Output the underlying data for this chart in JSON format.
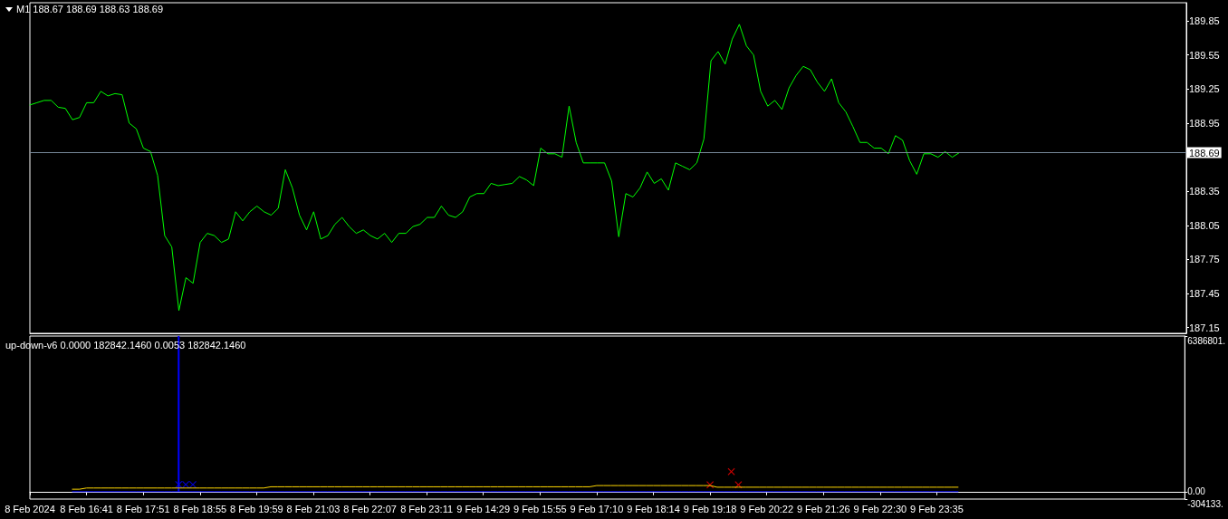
{
  "chart_data": [
    {
      "type": "line",
      "title": "M1 188.67 188.69 188.63 188.69",
      "categories": [
        null,
        null,
        null,
        null,
        null,
        null,
        null,
        null,
        null,
        null,
        null,
        null,
        null,
        null,
        null,
        null,
        null,
        null,
        null,
        null,
        null,
        null,
        null,
        null,
        null,
        null,
        null,
        null,
        null,
        null,
        null,
        null,
        null,
        null,
        null,
        null,
        null,
        null,
        null,
        null,
        null,
        null,
        null,
        null,
        null,
        null,
        null,
        null,
        null,
        null,
        null,
        null,
        null,
        null,
        null,
        null,
        null,
        null,
        null,
        null,
        null,
        null,
        null,
        null,
        null,
        null,
        null,
        null,
        null,
        null,
        null,
        null,
        null,
        null,
        null,
        null,
        null,
        null,
        null,
        null,
        null,
        null,
        null,
        null,
        null,
        null,
        null,
        null,
        null,
        null,
        null,
        null,
        null,
        null,
        null,
        null,
        null,
        null,
        null,
        null,
        null,
        null,
        null,
        null,
        null,
        null,
        null,
        null,
        null,
        null,
        null,
        null,
        null,
        null,
        null,
        null,
        null,
        null,
        null,
        null,
        null,
        null,
        null,
        null,
        null,
        null,
        null,
        null,
        null,
        null,
        null,
        null,
        null,
        null,
        null,
        null,
        null,
        null,
        null,
        null,
        null,
        null,
        null,
        null,
        null,
        null,
        null,
        null,
        null,
        null,
        null,
        null,
        null,
        null,
        null,
        null,
        null,
        null,
        null,
        null,
        null,
        null,
        null,
        null
      ],
      "series": [
        {
          "color": "#00ff00",
          "values": [
            189.11,
            189.13,
            189.15,
            189.15,
            189.09,
            189.08,
            188.98,
            189.0,
            189.13,
            189.13,
            189.23,
            189.19,
            189.21,
            189.2,
            188.95,
            188.9,
            188.73,
            188.7,
            188.49,
            187.96,
            187.86,
            187.3,
            187.59,
            187.54,
            187.9,
            187.98,
            187.96,
            187.9,
            187.93,
            188.17,
            188.09,
            188.17,
            188.22,
            188.17,
            188.14,
            188.2,
            188.54,
            188.38,
            188.14,
            188.01,
            188.17,
            187.93,
            187.96,
            188.06,
            188.12,
            188.04,
            187.98,
            188.01,
            187.96,
            187.93,
            187.98,
            187.9,
            187.98,
            187.98,
            188.04,
            188.06,
            188.12,
            188.12,
            188.22,
            188.14,
            188.12,
            188.17,
            188.3,
            188.33,
            188.33,
            188.42,
            188.4,
            188.41,
            188.42,
            188.48,
            188.45,
            188.4,
            188.73,
            188.68,
            188.68,
            188.65,
            189.1,
            188.78,
            188.6,
            188.6,
            188.6,
            188.6,
            188.44,
            187.95,
            188.33,
            188.3,
            188.38,
            188.52,
            188.42,
            188.46,
            188.36,
            188.6,
            188.57,
            188.54,
            188.6,
            188.81,
            189.5,
            189.58,
            189.47,
            189.69,
            189.82,
            189.63,
            189.55,
            189.23,
            189.1,
            189.15,
            189.07,
            189.26,
            189.37,
            189.45,
            189.42,
            189.31,
            189.23,
            189.34,
            189.13,
            189.05,
            188.92,
            188.78,
            188.78,
            188.73,
            188.73,
            188.68,
            188.84,
            188.8,
            188.62,
            188.5,
            188.68,
            188.68,
            188.65,
            188.7,
            188.65,
            188.69,
            null,
            null,
            null,
            null,
            null,
            null,
            null,
            null,
            null,
            null,
            null,
            null,
            null,
            null,
            null,
            null,
            null,
            null,
            null,
            null,
            null,
            null,
            null,
            null,
            null,
            null,
            null,
            null,
            null,
            null,
            null,
            null
          ]
        }
      ],
      "ylim": [
        187.1,
        190.01
      ],
      "yticks": [
        187.15,
        187.45,
        187.75,
        188.05,
        188.35,
        {
          "value": 188.65,
          "label": null
        },
        188.95,
        189.25,
        189.55,
        189.85
      ],
      "ref_lines": [
        {
          "axis": "y",
          "value": 188.69,
          "label": "188.69",
          "color": "#778899"
        }
      ],
      "tick_labels": "y"
    },
    {
      "type": "line",
      "title": "up-down-v6 0.0000 182842.1460 0.0053 182842.1460",
      "categories": [
        "8 Feb 2024",
        null,
        null,
        null,
        null,
        null,
        null,
        null,
        "8 Feb 16:41",
        null,
        null,
        null,
        null,
        null,
        null,
        null,
        "8 Feb 17:51",
        null,
        null,
        null,
        null,
        null,
        null,
        null,
        "8 Feb 18:55",
        null,
        null,
        null,
        null,
        null,
        null,
        null,
        "8 Feb 19:59",
        null,
        null,
        null,
        null,
        null,
        null,
        null,
        "8 Feb 21:03",
        null,
        null,
        null,
        null,
        null,
        null,
        null,
        "8 Feb 22:07",
        null,
        null,
        null,
        null,
        null,
        null,
        null,
        "8 Feb 23:11",
        null,
        null,
        null,
        null,
        null,
        null,
        null,
        "9 Feb 14:29",
        null,
        null,
        null,
        null,
        null,
        null,
        null,
        "9 Feb 15:55",
        null,
        null,
        null,
        null,
        null,
        null,
        null,
        "9 Feb 17:10",
        null,
        null,
        null,
        null,
        null,
        null,
        null,
        "9 Feb 18:14",
        null,
        null,
        null,
        null,
        null,
        null,
        null,
        "9 Feb 19:18",
        null,
        null,
        null,
        null,
        null,
        null,
        null,
        "9 Feb 20:22",
        null,
        null,
        null,
        null,
        null,
        null,
        null,
        "9 Feb 21:26",
        null,
        null,
        null,
        null,
        null,
        null,
        null,
        "9 Feb 22:30",
        null,
        null,
        null,
        null,
        null,
        null,
        null,
        "9 Feb 23:35",
        null,
        null,
        null,
        null,
        null,
        null,
        null,
        null,
        null,
        null,
        null,
        null,
        null,
        null,
        null,
        null,
        null,
        null,
        null,
        null,
        null,
        null,
        null,
        null,
        null,
        null,
        null,
        null,
        null,
        null,
        null,
        null,
        null,
        null,
        null
      ],
      "series": [
        {
          "color": "#0000ff",
          "values": [
            null,
            null,
            null,
            null,
            null,
            null,
            0,
            0,
            0,
            0,
            0,
            0,
            0,
            0,
            0,
            0,
            0,
            0,
            0,
            0,
            0,
            0,
            0,
            0,
            0,
            0,
            0,
            0,
            0,
            0,
            0,
            0,
            0,
            0,
            0,
            0,
            0,
            0,
            0,
            0,
            0,
            0,
            0,
            0,
            0,
            0,
            0,
            0,
            0,
            0,
            0,
            0,
            0,
            0,
            0,
            0,
            0,
            0,
            0,
            0,
            0,
            0,
            0,
            0,
            0,
            0,
            0,
            0,
            0,
            0,
            0,
            0,
            0,
            0,
            0,
            0,
            0,
            0,
            0,
            0,
            0,
            0,
            0,
            0,
            0,
            0,
            0,
            0,
            0,
            0,
            0,
            0,
            0,
            0,
            0,
            0,
            0,
            0,
            0,
            0,
            0,
            0,
            0,
            0,
            0,
            0,
            0,
            0,
            0,
            0,
            0,
            0,
            0,
            0,
            0,
            0,
            0,
            0,
            0,
            0,
            0,
            0,
            0,
            0,
            0,
            0,
            0,
            0,
            0,
            0,
            0,
            0,
            null,
            null,
            null,
            null,
            null,
            null,
            null,
            null,
            null,
            null,
            null,
            null,
            null,
            null,
            null,
            null,
            null,
            null,
            null,
            null,
            null,
            null,
            null,
            null,
            null,
            null,
            null,
            null,
            null,
            null,
            null,
            null
          ]
        },
        {
          "color": "#ffd700",
          "values": [
            null,
            null,
            null,
            null,
            null,
            null,
            100000,
            100000,
            150000,
            150000,
            150000,
            150000,
            150000,
            150000,
            150000,
            150000,
            150000,
            150000,
            150000,
            150000,
            150000,
            150000,
            150000,
            150000,
            150000,
            150000,
            150000,
            150000,
            150000,
            150000,
            150000,
            150000,
            150000,
            150000,
            200000,
            200000,
            200000,
            200000,
            200000,
            200000,
            200000,
            200000,
            200000,
            200000,
            200000,
            200000,
            200000,
            200000,
            200000,
            200000,
            200000,
            200000,
            200000,
            200000,
            200000,
            200000,
            200000,
            200000,
            200000,
            200000,
            200000,
            200000,
            200000,
            200000,
            200000,
            200000,
            200000,
            200000,
            200000,
            200000,
            200000,
            200000,
            200000,
            200000,
            200000,
            200000,
            200000,
            200000,
            200000,
            200000,
            250000,
            250000,
            250000,
            250000,
            250000,
            250000,
            250000,
            250000,
            250000,
            250000,
            250000,
            250000,
            250000,
            250000,
            250000,
            250000,
            250000,
            182842.146,
            182842.146,
            182842.146,
            182842.146,
            182842.146,
            182842.146,
            182842.146,
            182842.146,
            182842.146,
            182842.146,
            182842.146,
            182842.146,
            182842.146,
            182842.146,
            182842.146,
            182842.146,
            182842.146,
            182842.146,
            182842.146,
            182842.146,
            182842.146,
            182842.146,
            182842.146,
            182842.146,
            182842.146,
            182842.146,
            182842.146,
            182842.146,
            182842.146,
            182842.146,
            182842.146,
            182842.146,
            182842.146,
            182842.146,
            182842.146,
            null,
            null,
            null,
            null,
            null,
            null,
            null,
            null,
            null,
            null,
            null,
            null,
            null,
            null,
            null,
            null,
            null,
            null,
            null,
            null,
            null,
            null,
            null,
            null,
            null,
            null,
            null,
            null,
            null,
            null,
            null,
            null
          ]
        },
        {
          "type": "bar",
          "color": "#0000ff",
          "values": [
            null,
            null,
            null,
            null,
            null,
            null,
            null,
            null,
            null,
            null,
            null,
            null,
            null,
            null,
            null,
            null,
            null,
            null,
            null,
            null,
            null,
            6386801,
            null,
            null,
            null,
            null,
            null,
            null,
            null,
            null,
            null,
            null,
            null,
            null,
            null,
            null,
            null,
            null,
            null,
            null,
            null,
            null,
            null,
            null,
            null,
            null,
            null,
            null,
            null,
            null,
            null,
            null,
            null,
            null,
            null,
            null,
            null,
            null,
            null,
            null,
            null,
            null,
            null,
            null,
            null,
            null,
            null,
            null,
            null,
            null,
            null,
            null,
            null,
            null,
            null,
            null,
            null,
            null,
            null,
            null,
            null,
            null,
            null,
            null,
            null,
            null,
            null,
            null,
            null,
            null,
            null,
            null,
            null,
            null,
            null,
            null,
            null,
            null,
            null,
            null,
            null,
            null,
            null,
            null,
            null,
            null,
            null,
            null,
            null,
            null,
            null,
            null,
            null,
            null,
            null,
            null,
            null,
            null,
            null,
            null,
            null,
            null,
            null,
            null,
            null,
            null,
            null,
            null,
            null,
            null,
            null,
            null,
            null,
            null,
            null,
            null,
            null,
            null,
            null,
            null,
            null,
            null,
            null,
            null,
            null,
            null,
            null,
            null,
            null,
            null,
            null,
            null,
            null,
            null,
            null,
            null,
            null,
            null,
            null,
            null,
            null,
            null,
            null,
            null
          ]
        },
        {
          "type": "scatter",
          "color": "#0000ff",
          "marker": "cross",
          "values": [
            null,
            null,
            null,
            null,
            null,
            null,
            null,
            null,
            null,
            null,
            null,
            null,
            null,
            null,
            null,
            null,
            null,
            null,
            null,
            null,
            null,
            290000,
            290000,
            290000,
            null,
            null,
            null,
            null,
            null,
            null,
            null,
            null,
            null,
            null,
            null,
            null,
            null,
            null,
            null,
            null,
            null,
            null,
            null,
            null,
            null,
            null,
            null,
            null,
            null,
            null,
            null,
            null,
            null,
            null,
            null,
            null,
            null,
            null,
            null,
            null,
            null,
            null,
            null,
            null,
            null,
            null,
            null,
            null,
            null,
            null,
            null,
            null,
            null,
            null,
            null,
            null,
            null,
            null,
            null,
            null,
            null,
            null,
            null,
            null,
            null,
            null,
            null,
            null,
            null,
            null,
            null,
            null,
            null,
            null,
            null,
            null,
            null,
            null,
            null,
            null,
            null,
            null,
            null,
            null,
            null,
            null,
            null,
            null,
            null,
            null,
            null,
            null,
            null,
            null,
            null,
            null,
            null,
            null,
            null,
            null,
            null,
            null,
            null,
            null,
            null,
            null,
            null,
            null,
            null,
            null,
            null,
            null,
            null,
            null,
            null,
            null,
            null,
            null,
            null,
            null,
            null,
            null,
            null,
            null,
            null,
            null,
            null,
            null,
            null,
            null,
            null,
            null,
            null,
            null,
            null,
            null,
            null,
            null,
            null,
            null,
            null,
            null,
            null,
            null
          ]
        },
        {
          "type": "scatter",
          "color": "#ff0000",
          "marker": "cross",
          "values": [
            null,
            null,
            null,
            null,
            null,
            null,
            null,
            null,
            null,
            null,
            null,
            null,
            null,
            null,
            null,
            null,
            null,
            null,
            null,
            null,
            null,
            null,
            null,
            null,
            null,
            null,
            null,
            null,
            null,
            null,
            null,
            null,
            null,
            null,
            null,
            null,
            null,
            null,
            null,
            null,
            null,
            null,
            null,
            null,
            null,
            null,
            null,
            null,
            null,
            null,
            null,
            null,
            null,
            null,
            null,
            null,
            null,
            null,
            null,
            null,
            null,
            null,
            null,
            null,
            null,
            null,
            null,
            null,
            null,
            null,
            null,
            null,
            null,
            null,
            null,
            null,
            null,
            null,
            null,
            null,
            null,
            null,
            null,
            null,
            null,
            null,
            null,
            null,
            null,
            null,
            null,
            null,
            null,
            null,
            null,
            null,
            280000,
            null,
            null,
            820000,
            280000,
            null,
            null,
            null,
            null,
            null,
            null,
            null,
            null,
            null,
            null,
            null,
            null,
            null,
            null,
            null,
            null,
            null,
            null,
            null,
            null,
            null,
            null,
            null,
            null,
            null,
            null,
            null,
            null,
            null,
            null,
            null,
            null,
            null,
            null,
            null,
            null,
            null,
            null,
            null,
            null,
            null,
            null,
            null,
            null,
            null,
            null,
            null,
            null,
            null,
            null,
            null,
            null,
            null,
            null,
            null,
            null,
            null,
            null,
            null,
            null,
            null,
            null,
            null
          ]
        }
      ],
      "ylim": [
        -304133,
        6386801
      ],
      "yticks": [
        {
          "value": 6386801,
          "label": "6386801."
        },
        {
          "value": 0,
          "label": "0.00"
        },
        {
          "value": -304133,
          "label": "-304133."
        }
      ]
    }
  ]
}
